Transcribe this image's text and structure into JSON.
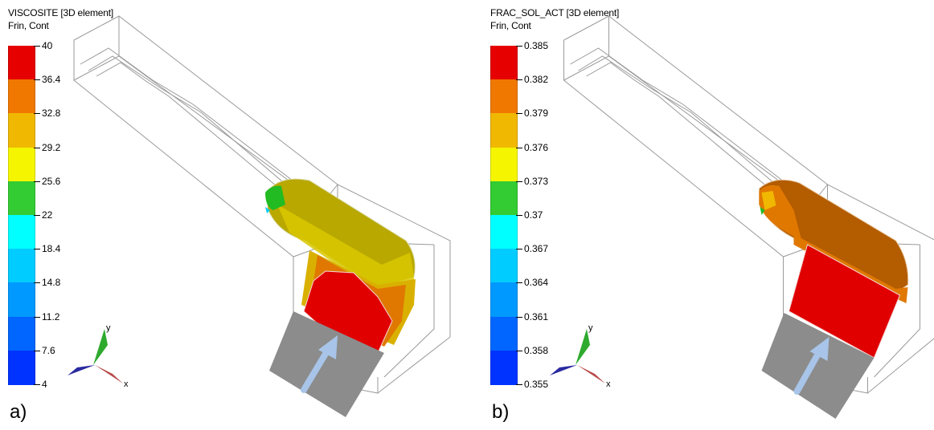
{
  "panels": [
    {
      "id": "a",
      "title": "VISCOSITE [3D element]",
      "subtitle": "Frin, Cont",
      "letter": "a)",
      "legend_ticks": [
        "40",
        "36.4",
        "32.8",
        "29.2",
        "25.6",
        "22",
        "18.4",
        "14.8",
        "11.2",
        "7.6",
        "4"
      ],
      "legend_colors": [
        "#e60000",
        "#f07800",
        "#f0b800",
        "#f5f500",
        "#33cc33",
        "#00ffff",
        "#00ccff",
        "#0099ff",
        "#0066ff",
        "#0033ff",
        "#0000ff"
      ],
      "axis_x": "x",
      "axis_y": "y"
    },
    {
      "id": "b",
      "title": "FRAC_SOL_ACT [3D element]",
      "subtitle": "Frin, Cont",
      "letter": "b)",
      "legend_ticks": [
        "0.385",
        "0.382",
        "0.379",
        "0.376",
        "0.373",
        "0.37",
        "0.367",
        "0.364",
        "0.361",
        "0.358",
        "0.355"
      ],
      "legend_colors": [
        "#e60000",
        "#f07800",
        "#f0b800",
        "#f5f500",
        "#33cc33",
        "#00ffff",
        "#00ccff",
        "#0099ff",
        "#0066ff",
        "#0033ff",
        "#0000ff"
      ],
      "axis_x": "x",
      "axis_y": "y"
    }
  ],
  "colors": {
    "wireframe": "#9a9a9a",
    "inlet_gray": "#8c8c8c",
    "flow_arrow": "#a8c4e8",
    "fluid_a_top": "#b8a800",
    "fluid_a_mid": "#d9b000",
    "fluid_a_low": "#e07800",
    "fluid_a_hot": "#e00000",
    "fluid_b_top": "#b35c00",
    "fluid_b_mid": "#e07800",
    "fluid_b_hot": "#e00000"
  }
}
